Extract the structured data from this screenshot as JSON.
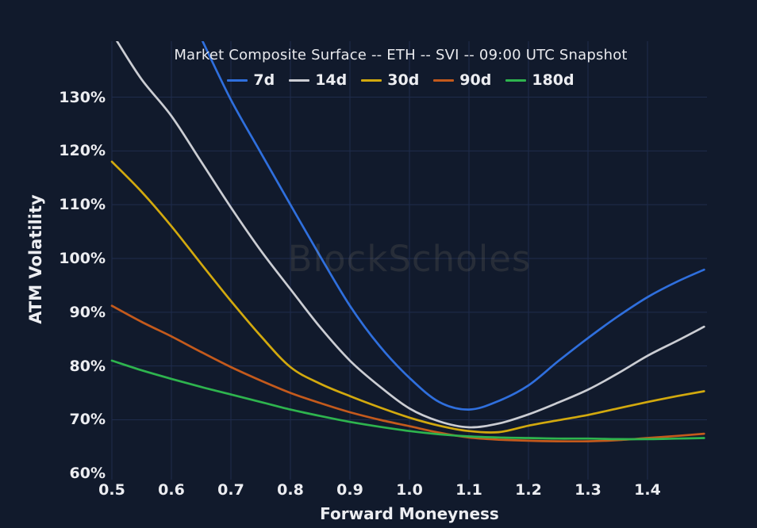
{
  "chart_data": {
    "type": "line",
    "title": "Market Composite Surface -- ETH -- SVI -- 09:00 UTC Snapshot",
    "xlabel": "Forward Moneyness",
    "ylabel": "ATM Volatility",
    "watermark": "BlockScholes",
    "grid": true,
    "legend_position": "top-center",
    "background_color": "#111a2c",
    "grid_color": "#223052",
    "text_color": "#ecedf1",
    "x_range": [
      0.5,
      1.5
    ],
    "y_range": [
      59.6,
      140.4
    ],
    "x_ticks": {
      "values": [
        0.5,
        0.6,
        0.7,
        0.8,
        0.9,
        1.0,
        1.1,
        1.2,
        1.3,
        1.4
      ],
      "labels": [
        "0.5",
        "0.6",
        "0.7",
        "0.8",
        "0.9",
        "1.0",
        "1.1",
        "1.2",
        "1.3",
        "1.4"
      ]
    },
    "y_ticks": {
      "values": [
        60,
        70,
        80,
        90,
        100,
        110,
        120,
        130
      ],
      "labels": [
        "60%",
        "70%",
        "80%",
        "90%",
        "100%",
        "110%",
        "120%",
        "130%"
      ]
    },
    "y_unit": "percent ATM volatility",
    "series": [
      {
        "name": "7d",
        "color": "#2f6fdd",
        "x": [
          0.652,
          0.7,
          0.75,
          0.8,
          0.85,
          0.9,
          0.95,
          1.0,
          1.05,
          1.1,
          1.15,
          1.2,
          1.25,
          1.3,
          1.35,
          1.4,
          1.45,
          1.495
        ],
        "values": [
          140.5,
          129.5,
          119.7,
          110.0,
          100.4,
          91.2,
          83.7,
          77.8,
          73.3,
          71.9,
          73.5,
          76.4,
          80.9,
          85.2,
          89.2,
          92.8,
          95.7,
          97.9
        ]
      },
      {
        "name": "14d",
        "color": "#cbcdd3",
        "x": [
          0.508,
          0.55,
          0.6,
          0.65,
          0.7,
          0.75,
          0.8,
          0.85,
          0.9,
          0.95,
          1.0,
          1.05,
          1.1,
          1.15,
          1.2,
          1.25,
          1.3,
          1.35,
          1.4,
          1.45,
          1.495
        ],
        "values": [
          140.5,
          133.3,
          126.5,
          118.0,
          109.5,
          101.5,
          94.3,
          87.2,
          81.0,
          76.2,
          72.1,
          69.7,
          68.6,
          69.3,
          71.0,
          73.2,
          75.6,
          78.6,
          81.9,
          84.7,
          87.3
        ]
      },
      {
        "name": "30d",
        "color": "#d2a90e",
        "x": [
          0.5,
          0.55,
          0.6,
          0.65,
          0.7,
          0.75,
          0.8,
          0.85,
          0.9,
          0.95,
          1.0,
          1.05,
          1.1,
          1.15,
          1.2,
          1.25,
          1.3,
          1.35,
          1.4,
          1.45,
          1.495
        ],
        "values": [
          118.0,
          112.4,
          106.0,
          99.0,
          92.1,
          85.6,
          79.8,
          76.7,
          74.4,
          72.3,
          70.4,
          68.9,
          67.9,
          67.7,
          68.9,
          69.9,
          70.9,
          72.1,
          73.3,
          74.4,
          75.3
        ]
      },
      {
        "name": "90d",
        "color": "#c45a1c",
        "x": [
          0.5,
          0.55,
          0.6,
          0.65,
          0.7,
          0.75,
          0.8,
          0.85,
          0.9,
          0.95,
          1.0,
          1.05,
          1.1,
          1.15,
          1.2,
          1.25,
          1.3,
          1.35,
          1.4,
          1.45,
          1.495
        ],
        "values": [
          91.2,
          88.2,
          85.5,
          82.6,
          79.8,
          77.3,
          75.0,
          73.1,
          71.4,
          70.0,
          68.8,
          67.6,
          66.7,
          66.3,
          66.1,
          66.0,
          66.0,
          66.2,
          66.6,
          67.0,
          67.4
        ]
      },
      {
        "name": "180d",
        "color": "#2eb44e",
        "x": [
          0.5,
          0.55,
          0.6,
          0.65,
          0.7,
          0.75,
          0.8,
          0.85,
          0.9,
          0.95,
          1.0,
          1.05,
          1.1,
          1.15,
          1.2,
          1.25,
          1.3,
          1.35,
          1.4,
          1.45,
          1.495
        ],
        "values": [
          81.0,
          79.2,
          77.6,
          76.1,
          74.7,
          73.3,
          71.9,
          70.7,
          69.6,
          68.7,
          67.9,
          67.3,
          66.9,
          66.7,
          66.6,
          66.5,
          66.5,
          66.4,
          66.4,
          66.5,
          66.6
        ]
      }
    ]
  }
}
